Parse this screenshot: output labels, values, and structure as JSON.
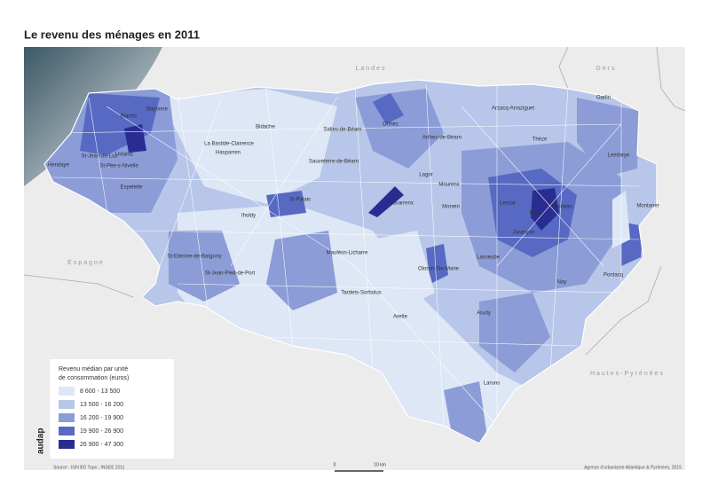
{
  "title": "Le revenu des ménages en 2011",
  "map": {
    "regions": [
      "Landes",
      "Gers",
      "Espagne",
      "Hautes-Pyrénées"
    ],
    "places": [
      "Bayonne",
      "Biarritz",
      "St-Jean-de-Luz",
      "Hendaye",
      "Ustaritz",
      "St-Pée-s-Nivelle",
      "Espelette",
      "Hasparren",
      "La Bastide-Clairence",
      "Bidache",
      "Salies-de-Béarn",
      "Sauveterre-de-Béarn",
      "Orthez",
      "Arthez-de-Béarn",
      "Arzacq-Arraziguet",
      "Garlin",
      "Thèze",
      "Lembeye",
      "Lagor",
      "Mourenx",
      "Navarrenx",
      "Monein",
      "Lescar",
      "Pau",
      "Morlaàs",
      "Jurançon",
      "Montaner",
      "St-Palais",
      "Iholdy",
      "Nay",
      "Pontacq",
      "Lasseube",
      "Oloron-Ste-Marie",
      "Mauléon-Licharre",
      "St-Etienne-de-Baïgorry",
      "St-Jean-Pied-de-Port",
      "Tardets-Sorholus",
      "Arette",
      "Arudy",
      "Laruns"
    ]
  },
  "legend": {
    "title": [
      "Revenu médian par unité",
      "de consommation (euros)"
    ],
    "items": [
      {
        "label": "8 600 - 13 500",
        "color": "#dde7f5"
      },
      {
        "label": "13 500 - 16 200",
        "color": "#b8c6e9"
      },
      {
        "label": "16 200 - 19 900",
        "color": "#8b9cd7"
      },
      {
        "label": "19 900 - 26 900",
        "color": "#5769c2"
      },
      {
        "label": "26 900 - 47 300",
        "color": "#292d92"
      }
    ]
  },
  "scale": [
    "0",
    "10 km"
  ],
  "source": "Source : IGN BD Topo ; INSEE 2011",
  "credit": "Agence d'urbanisme Atlantique & Pyrénées, 2015",
  "logo": "audap"
}
